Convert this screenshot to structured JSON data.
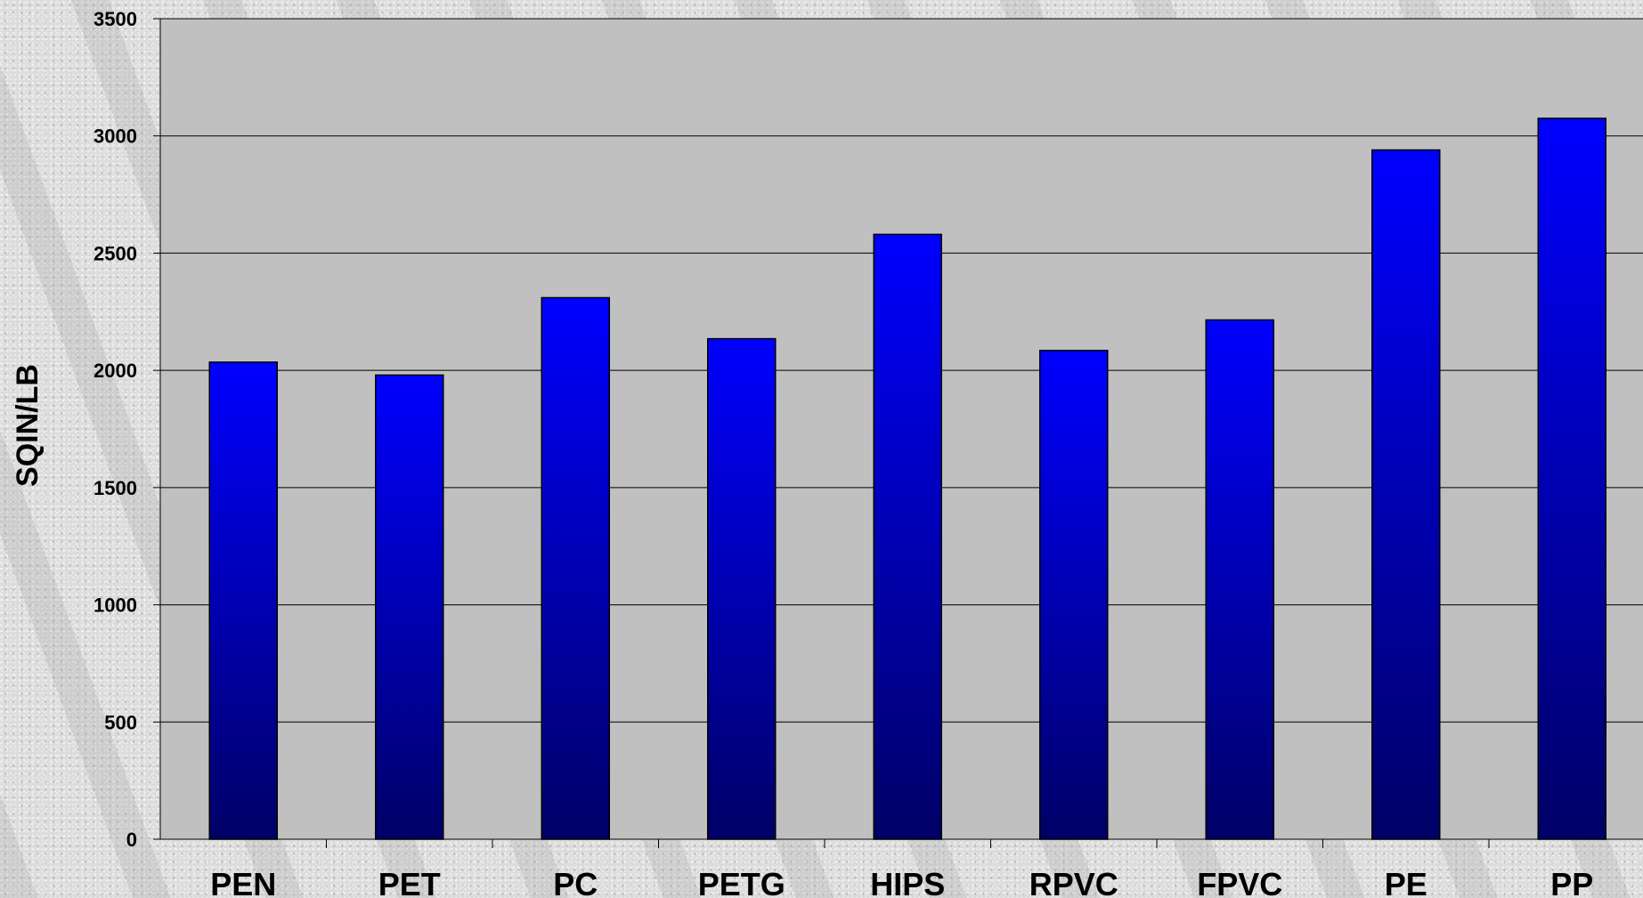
{
  "chart_data": {
    "type": "bar",
    "title": "",
    "xlabel": "",
    "ylabel": "SQIN/LB",
    "ylim": [
      0,
      3500
    ],
    "yticks": [
      0,
      500,
      1000,
      1500,
      2000,
      2500,
      3000,
      3500
    ],
    "grid": true,
    "legend": "none",
    "categories": [
      "PEN",
      "PET",
      "PC",
      "PETG",
      "HIPS",
      "RPVC",
      "FPVC",
      "PE",
      "PP"
    ],
    "values": [
      2035,
      1980,
      2310,
      2135,
      2580,
      2085,
      2215,
      2940,
      3075
    ],
    "colors": {
      "bar_top": "#0000ff",
      "bar_bottom": "#000066",
      "plot_background": "#c0c0c0",
      "gridline": "#000000"
    }
  }
}
